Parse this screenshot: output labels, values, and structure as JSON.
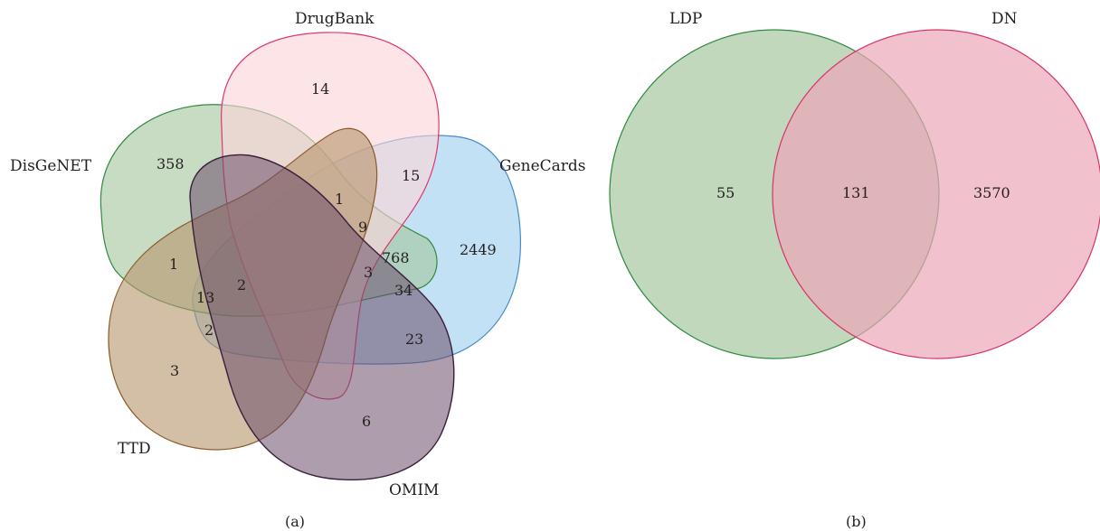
{
  "panel_a": {
    "caption": "(a)",
    "sets": [
      {
        "key": "drugbank",
        "label": "DrugBank",
        "color": "#e0356e",
        "fill": "#fbd5d8"
      },
      {
        "key": "disgenet",
        "label": "DisGeNET",
        "color": "#2e8b3e",
        "fill": "#a6c7a0"
      },
      {
        "key": "genecards",
        "label": "GeneCards",
        "color": "#4a8ac4",
        "fill": "#a8d4f0"
      },
      {
        "key": "ttd",
        "label": "TTD",
        "color": "#8b5a2b",
        "fill": "#b89670"
      },
      {
        "key": "omim",
        "label": "OMIM",
        "color": "#3a1f3a",
        "fill": "#8a6a82"
      }
    ],
    "counts": [
      {
        "key": "drugbank_only",
        "value": "14"
      },
      {
        "key": "disgenet_only",
        "value": "358"
      },
      {
        "key": "drugbank_genecards",
        "value": "15"
      },
      {
        "key": "disgenet_drugbank_genecards",
        "value": "1"
      },
      {
        "key": "genecards_only",
        "value": "2449"
      },
      {
        "key": "drugbank_genecards_omim",
        "value": "9"
      },
      {
        "key": "disgenet_genecards",
        "value": "768"
      },
      {
        "key": "disgenet_ttd",
        "value": "1"
      },
      {
        "key": "disgenet_ttd_genecards",
        "value": "13"
      },
      {
        "key": "all_five",
        "value": "2"
      },
      {
        "key": "four_set",
        "value": "3"
      },
      {
        "key": "disgenet_genecards_omim",
        "value": "34"
      },
      {
        "key": "ttd_genecards",
        "value": "2"
      },
      {
        "key": "genecards_omim",
        "value": "23"
      },
      {
        "key": "ttd_only",
        "value": "3"
      },
      {
        "key": "omim_only",
        "value": "6"
      }
    ]
  },
  "panel_b": {
    "caption": "(b)",
    "sets": [
      {
        "key": "ldp",
        "label": "LDP",
        "color": "#2e8b3e",
        "fill": "#a6c7a0"
      },
      {
        "key": "dn",
        "label": "DN",
        "color": "#d6336c",
        "fill": "#eba6b8"
      }
    ],
    "counts": [
      {
        "key": "ldp_only",
        "value": "55"
      },
      {
        "key": "both",
        "value": "131"
      },
      {
        "key": "dn_only",
        "value": "3570"
      }
    ]
  }
}
